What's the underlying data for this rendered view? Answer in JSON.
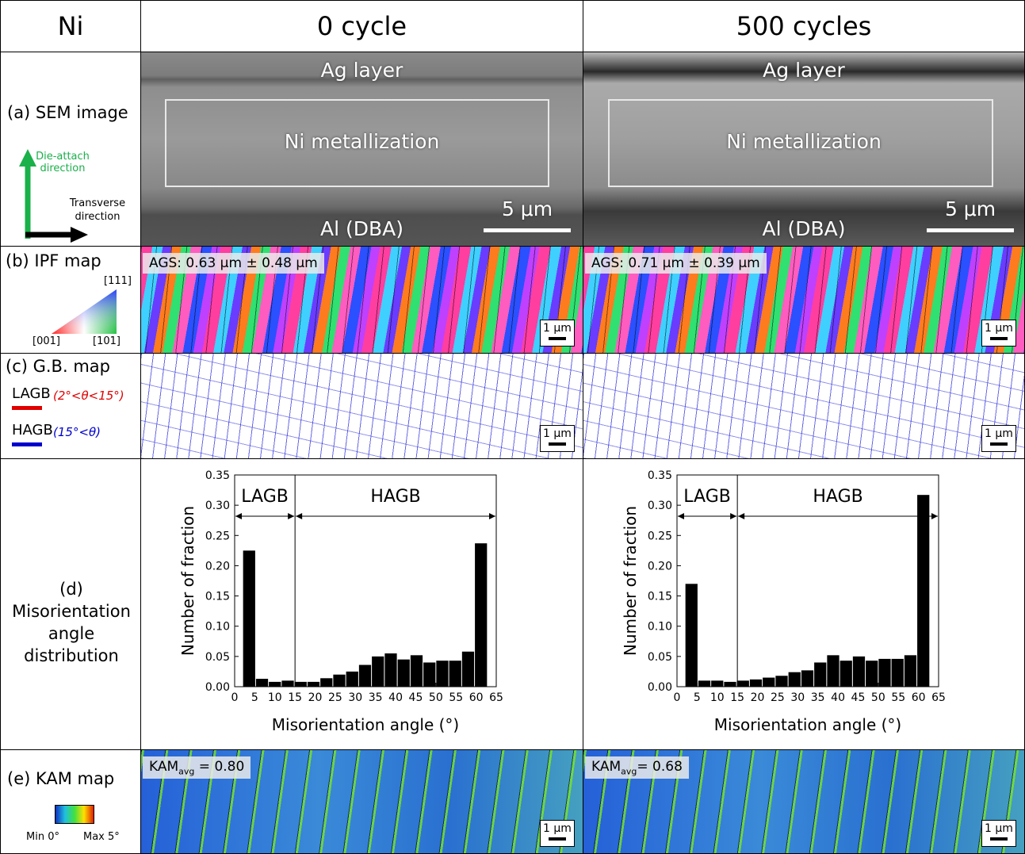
{
  "header": {
    "corner": "Ni",
    "columns": [
      "0 cycle",
      "500 cycles"
    ]
  },
  "rows": {
    "sem": {
      "label": "(a) SEM image",
      "axis_v": "Die-attach direction",
      "axis_h": "Transverse direction",
      "panels": [
        {
          "top": "Ag layer",
          "middle": "Ni metallization",
          "bottom": "Al (DBA)",
          "scale": "5 μm"
        },
        {
          "top": "Ag layer",
          "middle": "Ni metallization",
          "bottom": "Al (DBA)",
          "scale": "5 μm"
        }
      ]
    },
    "ipf": {
      "label": "(b) IPF map",
      "corners": [
        "[111]",
        "[001]",
        "[101]"
      ],
      "panels": [
        {
          "ags": "AGS: 0.63 μm ± 0.48 μm",
          "scale": "1 μm"
        },
        {
          "ags": "AGS: 0.71 μm ± 0.39 μm",
          "scale": "1 μm"
        }
      ]
    },
    "gb": {
      "label": "(c) G.B. map",
      "legend": [
        {
          "name": "LAGB",
          "range": "(2°<θ<15°)",
          "color": "#e00000"
        },
        {
          "name": "HAGB",
          "range": "(15°<θ)",
          "color": "#0000cc"
        }
      ],
      "panels": [
        {
          "scale": "1 μm"
        },
        {
          "scale": "1 μm"
        }
      ]
    },
    "mis": {
      "label": [
        "(d)",
        "Misorientation",
        "angle",
        "distribution"
      ]
    },
    "kam": {
      "label": "(e) KAM map",
      "min": "Min 0°",
      "max": "Max 5°",
      "panels": [
        {
          "main": "KAM",
          "sub": "avg",
          "rest": " = 0.80",
          "scale": "1 μm"
        },
        {
          "main": "KAM",
          "sub": "avg",
          "rest": "= 0.68",
          "scale": "1 μm"
        }
      ]
    }
  },
  "chart_data": [
    {
      "type": "histogram",
      "xlabel": "Misorientation angle (°)",
      "ylabel": "Number of fraction",
      "color": "#000000",
      "bins": [
        2,
        5.2,
        8.4,
        11.6,
        14.8,
        18,
        21.2,
        24.4,
        27.6,
        30.8,
        34,
        37.2,
        40.4,
        43.6,
        46.8,
        50,
        53.2,
        56.4,
        59.6,
        62.8
      ],
      "values": [
        0.225,
        0.013,
        0.008,
        0.01,
        0.008,
        0.008,
        0.014,
        0.02,
        0.025,
        0.036,
        0.05,
        0.055,
        0.045,
        0.052,
        0.04,
        0.043,
        0.043,
        0.058,
        0.237
      ],
      "xlim": [
        0,
        65
      ],
      "xticks": [
        0,
        5,
        10,
        15,
        20,
        25,
        30,
        35,
        40,
        45,
        50,
        55,
        60,
        65
      ],
      "ylim": [
        0,
        0.35
      ],
      "yticks": [
        {
          "value": 0,
          "label": "0.00"
        },
        {
          "value": 0.05,
          "label": "0.05"
        },
        {
          "value": 0.1,
          "label": "0.10"
        },
        {
          "value": 0.15,
          "label": "0.15"
        },
        {
          "value": 0.2,
          "label": "0.20"
        },
        {
          "value": 0.25,
          "label": "0.25"
        },
        {
          "value": 0.3,
          "label": "0.30"
        },
        {
          "value": 0.35,
          "label": "0.35"
        }
      ],
      "divider": 15,
      "annotations": [
        {
          "text": "LAGB",
          "xlim": [
            0,
            15
          ]
        },
        {
          "text": "HAGB",
          "xlim": [
            15,
            65
          ]
        }
      ]
    },
    {
      "type": "histogram",
      "xlabel": "Misorientation angle (°)",
      "ylabel": "Number of fraction",
      "color": "#000000",
      "bins": [
        2,
        5.2,
        8.4,
        11.6,
        14.8,
        18,
        21.2,
        24.4,
        27.6,
        30.8,
        34,
        37.2,
        40.4,
        43.6,
        46.8,
        50,
        53.2,
        56.4,
        59.6,
        62.8
      ],
      "values": [
        0.17,
        0.01,
        0.01,
        0.008,
        0.01,
        0.012,
        0.015,
        0.018,
        0.024,
        0.027,
        0.04,
        0.052,
        0.043,
        0.05,
        0.043,
        0.046,
        0.046,
        0.052,
        0.317
      ],
      "xlim": [
        0,
        65
      ],
      "xticks": [
        0,
        5,
        10,
        15,
        20,
        25,
        30,
        35,
        40,
        45,
        50,
        55,
        60,
        65
      ],
      "ylim": [
        0,
        0.35
      ],
      "yticks": [
        {
          "value": 0,
          "label": "0.00"
        },
        {
          "value": 0.05,
          "label": "0.05"
        },
        {
          "value": 0.1,
          "label": "0.10"
        },
        {
          "value": 0.15,
          "label": "0.15"
        },
        {
          "value": 0.2,
          "label": "0.20"
        },
        {
          "value": 0.25,
          "label": "0.25"
        },
        {
          "value": 0.3,
          "label": "0.30"
        },
        {
          "value": 0.35,
          "label": "0.35"
        }
      ],
      "divider": 15,
      "annotations": [
        {
          "text": "LAGB",
          "xlim": [
            0,
            15
          ]
        },
        {
          "text": "HAGB",
          "xlim": [
            15,
            65
          ]
        }
      ]
    }
  ]
}
